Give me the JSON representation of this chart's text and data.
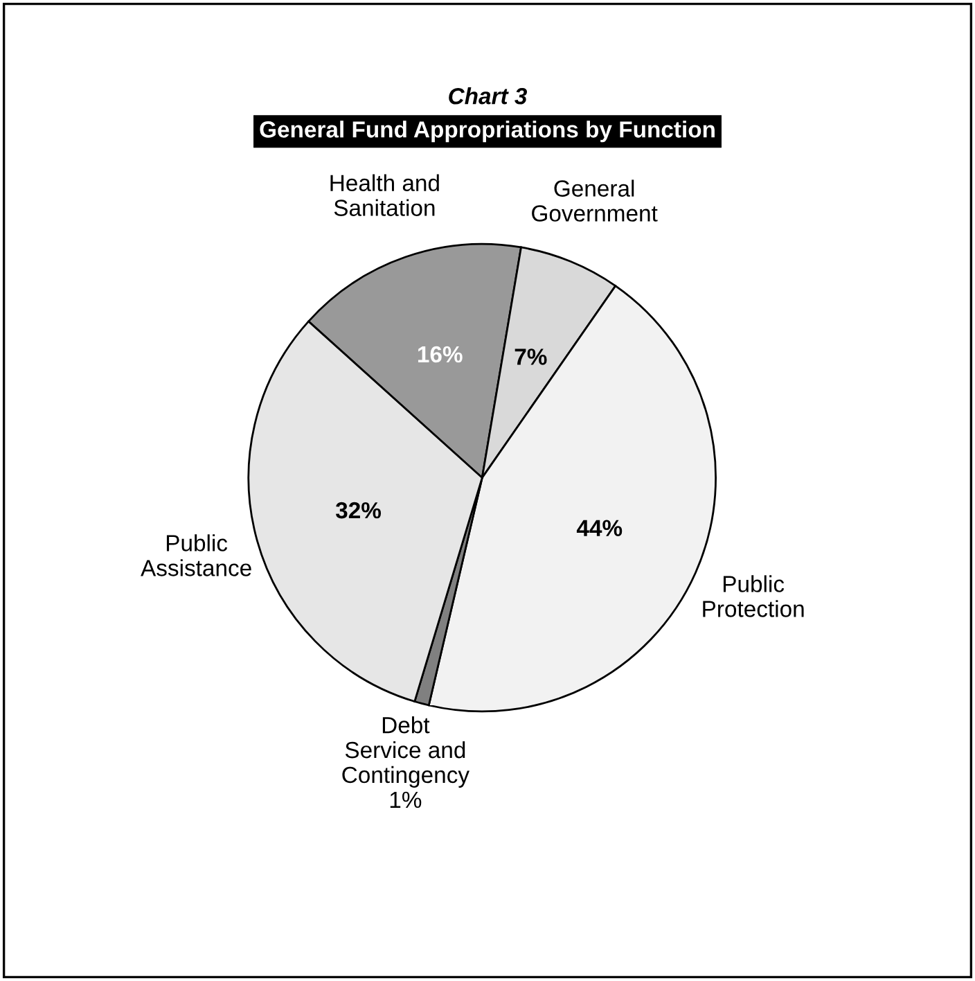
{
  "chart_data": {
    "type": "pie",
    "title": "Chart 3",
    "subtitle": "General Fund Appropriations by Function",
    "categories": [
      "Health and\nSanitation",
      "General\nGovernment",
      "Public\nProtection",
      "Debt\nService and\nContingency",
      "Public\nAssistance"
    ],
    "values": [
      16,
      7,
      44,
      1,
      32
    ],
    "value_labels": [
      "16%",
      "7%",
      "44%",
      "1%",
      "32%"
    ],
    "colors": [
      "#999999",
      "#d9d9d9",
      "#f2f2f2",
      "#808080",
      "#e6e6e6"
    ]
  }
}
